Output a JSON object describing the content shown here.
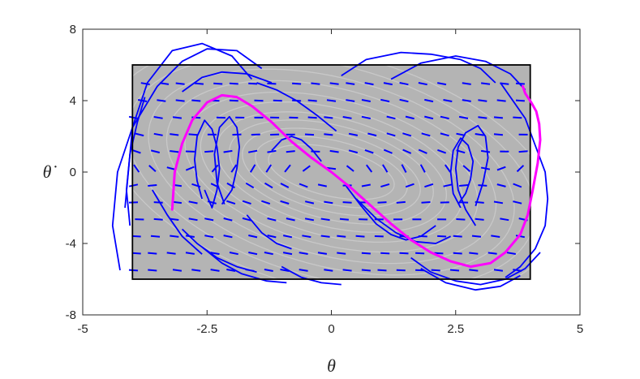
{
  "chart_data": {
    "type": "line",
    "title": "",
    "xlabel": "θ",
    "ylabel": "θ̇",
    "xlim": [
      -5,
      5
    ],
    "ylim": [
      -8,
      8
    ],
    "x_ticks": [
      -5,
      -2.5,
      0,
      2.5,
      5
    ],
    "x_tick_labels": [
      "-5",
      "-2.5",
      "0",
      "2.5",
      "5"
    ],
    "y_ticks": [
      -8,
      -4,
      0,
      4,
      8
    ],
    "y_tick_labels": [
      "-8",
      "-4",
      "0",
      "4",
      "8"
    ],
    "grid": false,
    "legend": "none",
    "colors": {
      "region_fill": "#b4b4b4",
      "region_edge": "#000000",
      "contour": "#c8c8c8",
      "trajectory": "#0000ff",
      "highlight": "#ff00ff",
      "axes": "#262626"
    },
    "region": {
      "x": [
        -4,
        4
      ],
      "y": [
        -6,
        6
      ]
    },
    "contour_levels": [
      0.3,
      0.55,
      0.8,
      1.05,
      1.3,
      1.6,
      1.9,
      2.25,
      2.6,
      3.0,
      3.4
    ],
    "highlight_curve": {
      "x": [
        -3.2,
        -3.15,
        -3.0,
        -2.8,
        -2.5,
        -2.2,
        -1.9,
        -1.6,
        -1.2,
        -0.8,
        -0.4,
        0,
        0.4,
        0.8,
        1.2,
        1.6,
        2.0,
        2.4,
        2.8,
        3.2,
        3.5,
        3.8,
        3.95,
        4.05,
        4.15,
        4.2,
        4.18,
        4.12,
        4.02,
        3.9,
        3.85
      ],
      "y": [
        -2.1,
        0.0,
        1.6,
        2.9,
        3.9,
        4.3,
        4.2,
        3.7,
        2.8,
        1.7,
        0.8,
        0.0,
        -0.9,
        -1.9,
        -2.9,
        -3.8,
        -4.5,
        -5.0,
        -5.3,
        -5.1,
        -4.5,
        -3.5,
        -2.4,
        -1.0,
        0.5,
        1.8,
        2.7,
        3.4,
        3.9,
        4.4,
        4.8
      ]
    },
    "trajectories": [
      {
        "x": [
          -4.15,
          -4.0,
          -3.7,
          -3.2,
          -2.6,
          -2.0,
          -1.6
        ],
        "y": [
          -2.0,
          2.5,
          5.0,
          6.8,
          7.2,
          6.5,
          5.2
        ]
      },
      {
        "x": [
          -4.25,
          -4.4,
          -4.3,
          -4.0,
          -3.5,
          -3.0,
          -2.5,
          -1.9,
          -1.4
        ],
        "y": [
          -5.5,
          -3.0,
          0.0,
          2.5,
          4.8,
          6.2,
          6.9,
          6.8,
          5.8
        ]
      },
      {
        "x": [
          -4.05,
          -4.12,
          -4.05,
          -3.9,
          -3.75
        ],
        "y": [
          -3.0,
          -1.0,
          1.0,
          2.8,
          4.2
        ]
      },
      {
        "x": [
          0.2,
          0.7,
          1.4,
          2.0,
          2.6,
          3.0,
          3.3
        ],
        "y": [
          5.4,
          6.3,
          6.7,
          6.6,
          6.3,
          5.8,
          5.0
        ]
      },
      {
        "x": [
          1.2,
          1.8,
          2.5,
          3.1,
          3.6,
          3.9
        ],
        "y": [
          5.2,
          6.1,
          6.5,
          6.2,
          5.5,
          4.6
        ]
      },
      {
        "x": [
          3.4,
          3.6,
          3.9,
          4.1,
          4.3,
          4.35,
          4.3,
          4.1,
          3.8,
          3.5
        ],
        "y": [
          5.0,
          4.2,
          3.0,
          1.5,
          0.0,
          -1.5,
          -3.0,
          -4.3,
          -5.3,
          -5.9
        ]
      },
      {
        "x": [
          1.6,
          2.0,
          2.5,
          3.0,
          3.5,
          3.9,
          4.2
        ],
        "y": [
          -4.8,
          -5.6,
          -6.1,
          -6.3,
          -6.0,
          -5.4,
          -4.5
        ]
      },
      {
        "x": [
          1.8,
          2.3,
          2.9,
          3.4,
          3.8
        ],
        "y": [
          -5.4,
          -6.2,
          -6.6,
          -6.4,
          -5.8
        ]
      },
      {
        "x": [
          2.6,
          2.45,
          2.4,
          2.45,
          2.6,
          2.75,
          2.85,
          2.8,
          2.7,
          2.55
        ],
        "y": [
          -2.0,
          -1.2,
          0.0,
          1.2,
          1.9,
          1.5,
          0.6,
          -0.4,
          -1.2,
          -1.8
        ]
      },
      {
        "x": [
          2.9,
          2.7,
          2.55,
          2.5,
          2.55,
          2.7,
          2.95,
          3.1,
          3.15,
          3.05,
          2.9
        ],
        "y": [
          -3.0,
          -2.1,
          -1.0,
          0.2,
          1.4,
          2.2,
          2.6,
          2.0,
          0.8,
          -0.6,
          -1.9
        ]
      },
      {
        "x": [
          -2.55,
          -2.4,
          -2.3,
          -2.25,
          -2.3,
          -2.4,
          -2.55,
          -2.7,
          -2.75,
          -2.7,
          -2.6
        ],
        "y": [
          -1.0,
          -2.0,
          -1.0,
          0.2,
          1.4,
          2.4,
          2.9,
          2.0,
          0.7,
          -0.5,
          -1.5
        ]
      },
      {
        "x": [
          -2.2,
          -2.0,
          -1.9,
          -1.85,
          -1.9,
          -2.05,
          -2.25,
          -2.35,
          -2.3,
          -2.15
        ],
        "y": [
          -1.8,
          -1.0,
          0.2,
          1.4,
          2.5,
          3.1,
          2.5,
          1.0,
          -0.6,
          -1.8
        ]
      },
      {
        "x": [
          -1.2,
          -1.0,
          -0.8,
          -0.6,
          -0.4,
          -0.2
        ],
        "y": [
          1.2,
          1.8,
          2.0,
          1.8,
          1.3,
          0.6
        ]
      },
      {
        "x": [
          0.3,
          0.6,
          0.9,
          1.2,
          1.5,
          1.8,
          2.1
        ],
        "y": [
          -0.8,
          -1.9,
          -2.9,
          -3.5,
          -3.8,
          -3.6,
          -3.0
        ]
      },
      {
        "x": [
          0.5,
          0.9,
          1.3,
          1.7,
          2.1,
          2.4
        ],
        "y": [
          -1.5,
          -2.6,
          -3.4,
          -3.9,
          -4.0,
          -3.6
        ]
      },
      {
        "x": [
          -1.7,
          -1.4,
          -1.1,
          -0.8
        ],
        "y": [
          -2.4,
          -3.4,
          -4.0,
          -4.3
        ]
      },
      {
        "x": [
          -3.0,
          -2.7,
          -2.3,
          -1.9,
          -1.5
        ],
        "y": [
          -3.2,
          -4.0,
          -4.8,
          -5.3,
          -5.6
        ]
      },
      {
        "x": [
          -2.6,
          -2.2,
          -1.8,
          -1.3,
          -0.9
        ],
        "y": [
          -4.2,
          -5.1,
          -5.7,
          -6.1,
          -6.2
        ]
      },
      {
        "x": [
          -1.0,
          -0.6,
          -0.2,
          0.2
        ],
        "y": [
          -5.3,
          -5.9,
          -6.2,
          -6.3
        ]
      },
      {
        "x": [
          -3.6,
          -3.3,
          -3.0,
          -2.6
        ],
        "y": [
          -1.0,
          -2.4,
          -3.6,
          -4.6
        ]
      },
      {
        "x": [
          -3.0,
          -2.6,
          -2.2,
          -1.7,
          -1.2
        ],
        "y": [
          4.5,
          5.3,
          5.6,
          5.5,
          5.0
        ]
      },
      {
        "x": [
          -1.5,
          -1.1,
          -0.7,
          -0.3,
          0.1
        ],
        "y": [
          5.0,
          4.6,
          4.0,
          3.2,
          2.3
        ]
      }
    ]
  }
}
